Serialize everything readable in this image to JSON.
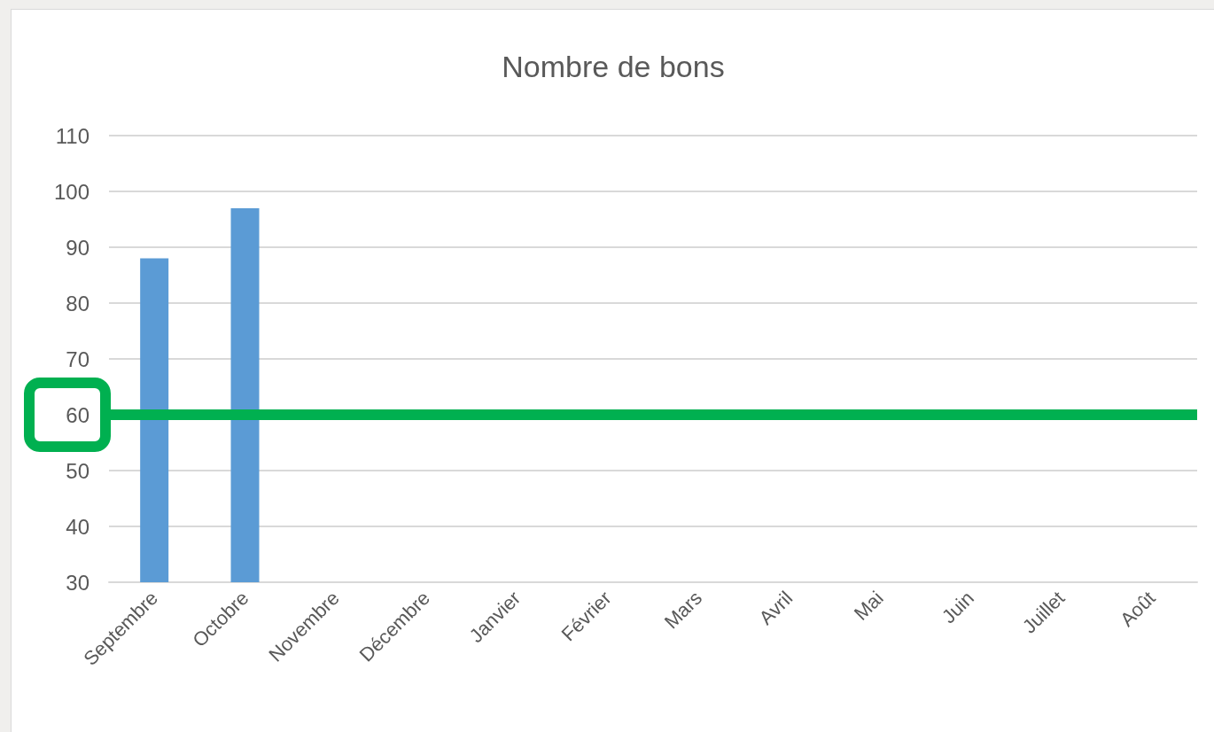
{
  "chart_data": {
    "type": "bar",
    "title": "Nombre de bons",
    "categories": [
      "Septembre",
      "Octobre",
      "Novembre",
      "Décembre",
      "Janvier",
      "Février",
      "Mars",
      "Avril",
      "Mai",
      "Juin",
      "Juillet",
      "Août"
    ],
    "values": [
      88,
      97,
      null,
      null,
      null,
      null,
      null,
      null,
      null,
      null,
      null,
      null
    ],
    "color": "#5b9bd5",
    "ylim": [
      30,
      110
    ],
    "yticks": [
      30,
      40,
      50,
      60,
      70,
      80,
      90,
      100,
      110
    ],
    "grid": "y",
    "ref_lines": [
      {
        "axis": "y",
        "value": 60,
        "color": "#00b050"
      }
    ]
  }
}
